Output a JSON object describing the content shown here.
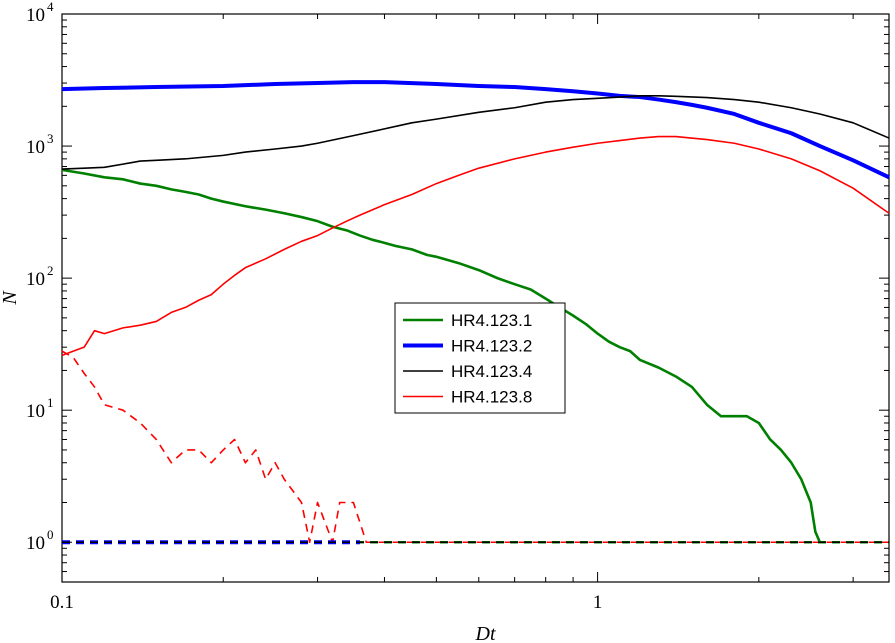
{
  "chart_data": {
    "type": "line",
    "xscale": "log",
    "yscale": "log",
    "xlabel": "Dt",
    "ylabel": "N",
    "xlim": [
      0.1,
      3.5
    ],
    "ylim": [
      0.5,
      10000
    ],
    "grid": false,
    "legend": {
      "placement": "center",
      "entries": [
        "HR4.123.1",
        "HR4.123.2",
        "HR4.123.4",
        "HR4.123.8"
      ]
    },
    "x_ticks": [
      {
        "value": 0.1,
        "label": "0.1"
      },
      {
        "value": 1,
        "label": "1"
      }
    ],
    "y_ticks": [
      {
        "value": 1,
        "base": "10",
        "exp": "0"
      },
      {
        "value": 10,
        "base": "10",
        "exp": "1"
      },
      {
        "value": 100,
        "base": "10",
        "exp": "2"
      },
      {
        "value": 1000,
        "base": "10",
        "exp": "3"
      },
      {
        "value": 10000,
        "base": "10",
        "exp": "4"
      }
    ],
    "series": [
      {
        "name": "HR4.123.1",
        "color": "#008000",
        "style": "solid",
        "weight": "medium",
        "points": [
          [
            0.1,
            660
          ],
          [
            0.11,
            620
          ],
          [
            0.12,
            580
          ],
          [
            0.13,
            560
          ],
          [
            0.14,
            520
          ],
          [
            0.15,
            500
          ],
          [
            0.16,
            470
          ],
          [
            0.17,
            450
          ],
          [
            0.18,
            430
          ],
          [
            0.19,
            400
          ],
          [
            0.2,
            380
          ],
          [
            0.22,
            350
          ],
          [
            0.24,
            330
          ],
          [
            0.26,
            310
          ],
          [
            0.28,
            290
          ],
          [
            0.3,
            270
          ],
          [
            0.32,
            245
          ],
          [
            0.34,
            230
          ],
          [
            0.36,
            210
          ],
          [
            0.38,
            195
          ],
          [
            0.4,
            185
          ],
          [
            0.42,
            175
          ],
          [
            0.45,
            165
          ],
          [
            0.48,
            150
          ],
          [
            0.5,
            145
          ],
          [
            0.55,
            130
          ],
          [
            0.6,
            115
          ],
          [
            0.65,
            100
          ],
          [
            0.7,
            90
          ],
          [
            0.75,
            82
          ],
          [
            0.8,
            70
          ],
          [
            0.85,
            60
          ],
          [
            0.9,
            52
          ],
          [
            0.95,
            45
          ],
          [
            1.0,
            38
          ],
          [
            1.05,
            33
          ],
          [
            1.1,
            30
          ],
          [
            1.15,
            28
          ],
          [
            1.2,
            24
          ],
          [
            1.3,
            21
          ],
          [
            1.4,
            18
          ],
          [
            1.5,
            15
          ],
          [
            1.6,
            11
          ],
          [
            1.7,
            9
          ],
          [
            1.8,
            9
          ],
          [
            1.9,
            9
          ],
          [
            2.0,
            8
          ],
          [
            2.1,
            6
          ],
          [
            2.2,
            5
          ],
          [
            2.3,
            4
          ],
          [
            2.4,
            3
          ],
          [
            2.5,
            2
          ],
          [
            2.55,
            1.2
          ],
          [
            2.6,
            1
          ]
        ]
      },
      {
        "name": "HR4.123.2",
        "color": "#0000ff",
        "style": "solid",
        "weight": "thick",
        "points": [
          [
            0.1,
            2700
          ],
          [
            0.12,
            2750
          ],
          [
            0.15,
            2800
          ],
          [
            0.2,
            2850
          ],
          [
            0.25,
            2950
          ],
          [
            0.3,
            3000
          ],
          [
            0.35,
            3050
          ],
          [
            0.4,
            3050
          ],
          [
            0.5,
            2950
          ],
          [
            0.6,
            2850
          ],
          [
            0.7,
            2800
          ],
          [
            0.8,
            2700
          ],
          [
            0.9,
            2600
          ],
          [
            1.0,
            2500
          ],
          [
            1.1,
            2400
          ],
          [
            1.2,
            2350
          ],
          [
            1.3,
            2250
          ],
          [
            1.4,
            2150
          ],
          [
            1.5,
            2050
          ],
          [
            1.6,
            1950
          ],
          [
            1.8,
            1750
          ],
          [
            2.0,
            1500
          ],
          [
            2.3,
            1250
          ],
          [
            2.6,
            1000
          ],
          [
            3.0,
            780
          ],
          [
            3.5,
            580
          ]
        ]
      },
      {
        "name": "HR4.123.4",
        "color": "#000000",
        "style": "solid",
        "weight": "thin",
        "points": [
          [
            0.1,
            670
          ],
          [
            0.11,
            680
          ],
          [
            0.12,
            690
          ],
          [
            0.13,
            730
          ],
          [
            0.14,
            770
          ],
          [
            0.15,
            780
          ],
          [
            0.17,
            800
          ],
          [
            0.2,
            850
          ],
          [
            0.22,
            900
          ],
          [
            0.25,
            950
          ],
          [
            0.28,
            1000
          ],
          [
            0.3,
            1050
          ],
          [
            0.35,
            1200
          ],
          [
            0.4,
            1350
          ],
          [
            0.45,
            1500
          ],
          [
            0.5,
            1600
          ],
          [
            0.6,
            1800
          ],
          [
            0.7,
            1950
          ],
          [
            0.8,
            2150
          ],
          [
            0.9,
            2250
          ],
          [
            1.0,
            2300
          ],
          [
            1.1,
            2350
          ],
          [
            1.2,
            2400
          ],
          [
            1.3,
            2400
          ],
          [
            1.4,
            2380
          ],
          [
            1.6,
            2330
          ],
          [
            1.8,
            2250
          ],
          [
            2.0,
            2150
          ],
          [
            2.3,
            1950
          ],
          [
            2.6,
            1750
          ],
          [
            3.0,
            1500
          ],
          [
            3.5,
            1150
          ]
        ]
      },
      {
        "name": "HR4.123.8",
        "color": "#ff0000",
        "style": "solid",
        "weight": "thin",
        "points": [
          [
            0.1,
            26
          ],
          [
            0.105,
            28
          ],
          [
            0.11,
            30
          ],
          [
            0.115,
            40
          ],
          [
            0.12,
            38
          ],
          [
            0.13,
            42
          ],
          [
            0.14,
            44
          ],
          [
            0.15,
            47
          ],
          [
            0.16,
            55
          ],
          [
            0.17,
            60
          ],
          [
            0.18,
            68
          ],
          [
            0.19,
            75
          ],
          [
            0.2,
            90
          ],
          [
            0.21,
            105
          ],
          [
            0.22,
            120
          ],
          [
            0.24,
            140
          ],
          [
            0.26,
            165
          ],
          [
            0.28,
            190
          ],
          [
            0.3,
            210
          ],
          [
            0.32,
            240
          ],
          [
            0.34,
            270
          ],
          [
            0.36,
            300
          ],
          [
            0.4,
            360
          ],
          [
            0.45,
            430
          ],
          [
            0.5,
            520
          ],
          [
            0.55,
            600
          ],
          [
            0.6,
            680
          ],
          [
            0.7,
            800
          ],
          [
            0.8,
            900
          ],
          [
            0.9,
            980
          ],
          [
            1.0,
            1050
          ],
          [
            1.1,
            1100
          ],
          [
            1.2,
            1150
          ],
          [
            1.3,
            1180
          ],
          [
            1.4,
            1180
          ],
          [
            1.6,
            1120
          ],
          [
            1.8,
            1050
          ],
          [
            2.0,
            950
          ],
          [
            2.3,
            800
          ],
          [
            2.6,
            650
          ],
          [
            3.0,
            480
          ],
          [
            3.5,
            310
          ]
        ]
      },
      {
        "name": "",
        "color": "#ff0000",
        "style": "dashed",
        "weight": "thin",
        "points": [
          [
            0.1,
            28
          ],
          [
            0.105,
            25
          ],
          [
            0.11,
            19
          ],
          [
            0.115,
            15
          ],
          [
            0.12,
            11
          ],
          [
            0.13,
            10
          ],
          [
            0.14,
            8
          ],
          [
            0.15,
            6
          ],
          [
            0.16,
            4
          ],
          [
            0.17,
            5
          ],
          [
            0.18,
            5
          ],
          [
            0.19,
            4
          ],
          [
            0.2,
            5
          ],
          [
            0.21,
            6
          ],
          [
            0.22,
            4
          ],
          [
            0.23,
            5
          ],
          [
            0.24,
            3
          ],
          [
            0.25,
            4
          ],
          [
            0.26,
            3
          ],
          [
            0.28,
            2
          ],
          [
            0.29,
            1
          ],
          [
            0.3,
            2
          ],
          [
            0.32,
            1
          ],
          [
            0.33,
            2
          ],
          [
            0.35,
            2
          ],
          [
            0.37,
            1
          ],
          [
            3.5,
            1
          ]
        ]
      },
      {
        "name": "",
        "color": "#008000",
        "style": "dashed",
        "weight": "medium",
        "points": [
          [
            0.1,
            1
          ],
          [
            3.5,
            1
          ]
        ]
      },
      {
        "name": "",
        "color": "#0000ff",
        "style": "dashed",
        "weight": "thick",
        "points": [
          [
            0.1,
            1
          ],
          [
            0.36,
            1
          ]
        ]
      },
      {
        "name": "",
        "color": "#000000",
        "style": "dashed",
        "weight": "thin",
        "points": [
          [
            0.1,
            1
          ],
          [
            3.5,
            1
          ]
        ]
      }
    ]
  }
}
